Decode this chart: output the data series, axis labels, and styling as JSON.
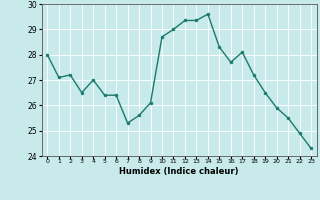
{
  "x": [
    0,
    1,
    2,
    3,
    4,
    5,
    6,
    7,
    8,
    9,
    10,
    11,
    12,
    13,
    14,
    15,
    16,
    17,
    18,
    19,
    20,
    21,
    22,
    23
  ],
  "y": [
    28.0,
    27.1,
    27.2,
    26.5,
    27.0,
    26.4,
    26.4,
    25.3,
    25.6,
    26.1,
    28.7,
    29.0,
    29.35,
    29.35,
    29.6,
    28.3,
    27.7,
    28.1,
    27.2,
    26.5,
    25.9,
    25.5,
    24.9,
    24.3
  ],
  "line_color": "#1a7a6e",
  "marker_color": "#1a7a6e",
  "bg_color": "#c8eaea",
  "grid_color": "#ffffff",
  "xlabel": "Humidex (Indice chaleur)",
  "ylim": [
    24,
    30
  ],
  "xlim_min": -0.5,
  "xlim_max": 23.5,
  "yticks": [
    24,
    25,
    26,
    27,
    28,
    29,
    30
  ]
}
